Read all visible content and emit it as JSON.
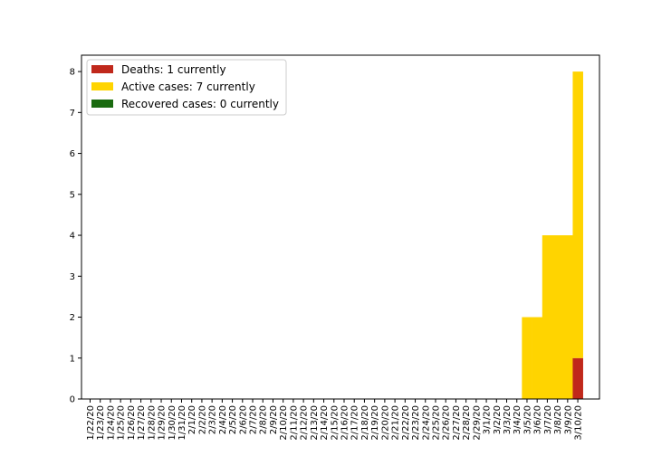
{
  "chart_data": {
    "type": "bar",
    "stacked": true,
    "categories": [
      "1/22/20",
      "1/23/20",
      "1/24/20",
      "1/25/20",
      "1/26/20",
      "1/27/20",
      "1/28/20",
      "1/29/20",
      "1/30/20",
      "1/31/20",
      "2/1/20",
      "2/2/20",
      "2/3/20",
      "2/4/20",
      "2/5/20",
      "2/6/20",
      "2/7/20",
      "2/8/20",
      "2/9/20",
      "2/10/20",
      "2/11/20",
      "2/12/20",
      "2/13/20",
      "2/14/20",
      "2/15/20",
      "2/16/20",
      "2/17/20",
      "2/18/20",
      "2/19/20",
      "2/20/20",
      "2/21/20",
      "2/22/20",
      "2/23/20",
      "2/24/20",
      "2/25/20",
      "2/26/20",
      "2/27/20",
      "2/28/20",
      "2/29/20",
      "3/1/20",
      "3/2/20",
      "3/3/20",
      "3/4/20",
      "3/5/20",
      "3/6/20",
      "3/7/20",
      "3/8/20",
      "3/9/20",
      "3/10/20"
    ],
    "series": [
      {
        "name": "Deaths: 1 currently",
        "color": "#c0281b",
        "values": [
          0,
          0,
          0,
          0,
          0,
          0,
          0,
          0,
          0,
          0,
          0,
          0,
          0,
          0,
          0,
          0,
          0,
          0,
          0,
          0,
          0,
          0,
          0,
          0,
          0,
          0,
          0,
          0,
          0,
          0,
          0,
          0,
          0,
          0,
          0,
          0,
          0,
          0,
          0,
          0,
          0,
          0,
          0,
          0,
          0,
          0,
          0,
          0,
          1
        ]
      },
      {
        "name": "Active cases: 7 currently",
        "color": "#ffd400",
        "values": [
          0,
          0,
          0,
          0,
          0,
          0,
          0,
          0,
          0,
          0,
          0,
          0,
          0,
          0,
          0,
          0,
          0,
          0,
          0,
          0,
          0,
          0,
          0,
          0,
          0,
          0,
          0,
          0,
          0,
          0,
          0,
          0,
          0,
          0,
          0,
          0,
          0,
          0,
          0,
          0,
          0,
          0,
          0,
          2,
          2,
          4,
          4,
          4,
          7
        ]
      },
      {
        "name": "Recovered cases: 0 currently",
        "color": "#1a6b10",
        "values": [
          0,
          0,
          0,
          0,
          0,
          0,
          0,
          0,
          0,
          0,
          0,
          0,
          0,
          0,
          0,
          0,
          0,
          0,
          0,
          0,
          0,
          0,
          0,
          0,
          0,
          0,
          0,
          0,
          0,
          0,
          0,
          0,
          0,
          0,
          0,
          0,
          0,
          0,
          0,
          0,
          0,
          0,
          0,
          0,
          0,
          0,
          0,
          0,
          0
        ]
      }
    ],
    "yticks": [
      0,
      1,
      2,
      3,
      4,
      5,
      6,
      7,
      8
    ],
    "ylim": [
      0,
      8.4
    ],
    "title": "",
    "xlabel": "",
    "ylabel": "",
    "grid": false,
    "legend_position": "top-left"
  }
}
